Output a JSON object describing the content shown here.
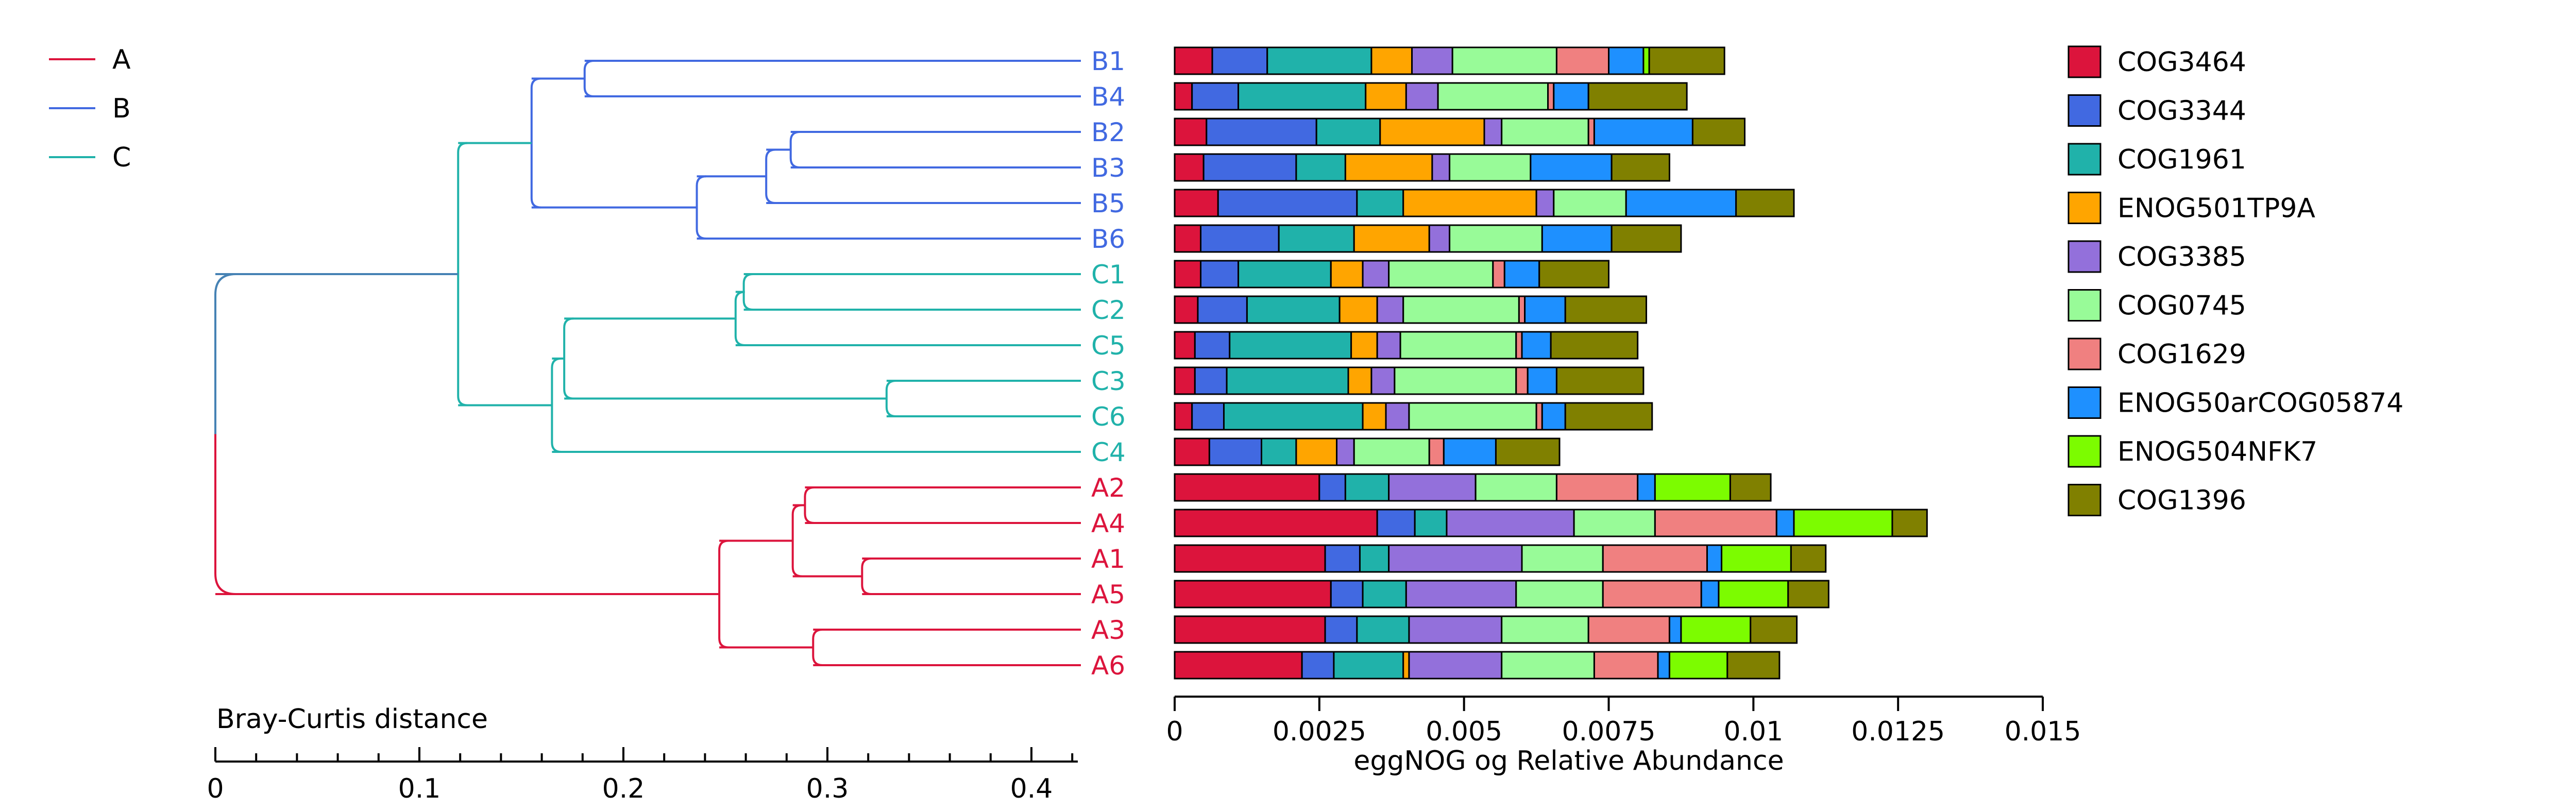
{
  "chart_data": [
    {
      "type": "dendrogram",
      "xlabel": "Bray-Curtis distance",
      "xlim": [
        0,
        0.42
      ],
      "xticks": [
        0,
        0.1,
        0.2,
        0.3,
        0.4
      ],
      "xtick_labels": [
        "0",
        "0.1",
        "0.2",
        "0.3",
        "0.4"
      ],
      "group_legend": [
        {
          "name": "A",
          "color": "#dc143c"
        },
        {
          "name": "B",
          "color": "#4169e1"
        },
        {
          "name": "C",
          "color": "#20b2aa"
        }
      ],
      "leaves": [
        {
          "label": "B1",
          "group": "B"
        },
        {
          "label": "B4",
          "group": "B"
        },
        {
          "label": "B2",
          "group": "B"
        },
        {
          "label": "B3",
          "group": "B"
        },
        {
          "label": "B5",
          "group": "B"
        },
        {
          "label": "B6",
          "group": "B"
        },
        {
          "label": "C1",
          "group": "C"
        },
        {
          "label": "C2",
          "group": "C"
        },
        {
          "label": "C5",
          "group": "C"
        },
        {
          "label": "C3",
          "group": "C"
        },
        {
          "label": "C6",
          "group": "C"
        },
        {
          "label": "C4",
          "group": "C"
        },
        {
          "label": "A2",
          "group": "A"
        },
        {
          "label": "A4",
          "group": "A"
        },
        {
          "label": "A1",
          "group": "A"
        },
        {
          "label": "A5",
          "group": "A"
        },
        {
          "label": "A3",
          "group": "A"
        },
        {
          "label": "A6",
          "group": "A"
        }
      ],
      "merges": [
        {
          "children": [
            "B1",
            "B4"
          ],
          "height": 0.181,
          "color": "#4169e1"
        },
        {
          "children": [
            "B2",
            "B3"
          ],
          "height": 0.282,
          "color": "#4169e1"
        },
        {
          "children": [
            [
              "B2",
              "B3"
            ],
            "B5"
          ],
          "height": 0.27,
          "color": "#4169e1"
        },
        {
          "children": [
            [
              "B2",
              "B3",
              "B5"
            ],
            "B6"
          ],
          "height": 0.236,
          "color": "#4169e1"
        },
        {
          "children": [
            [
              "B1",
              "B4"
            ],
            [
              "B2",
              "B3",
              "B5",
              "B6"
            ]
          ],
          "height": 0.155,
          "color": "#4169e1"
        },
        {
          "children": [
            "C1",
            "C2"
          ],
          "height": 0.259,
          "color": "#20b2aa"
        },
        {
          "children": [
            [
              "C1",
              "C2"
            ],
            "C5"
          ],
          "height": 0.255,
          "color": "#20b2aa"
        },
        {
          "children": [
            "C3",
            "C6"
          ],
          "height": 0.329,
          "color": "#20b2aa"
        },
        {
          "children": [
            [
              "C1",
              "C2",
              "C5"
            ],
            [
              "C3",
              "C6"
            ]
          ],
          "height": 0.171,
          "color": "#20b2aa"
        },
        {
          "children": [
            [
              "C1",
              "C2",
              "C5",
              "C3",
              "C6"
            ],
            "C4"
          ],
          "height": 0.165,
          "color": "#20b2aa"
        },
        {
          "children": [
            [
              "B1",
              "B4",
              "B2",
              "B3",
              "B5",
              "B6"
            ],
            [
              "C1",
              "C2",
              "C5",
              "C3",
              "C6",
              "C4"
            ]
          ],
          "height": 0.119,
          "color": "#20b2aa"
        },
        {
          "children": [
            "A2",
            "A4"
          ],
          "height": 0.289,
          "color": "#dc143c"
        },
        {
          "children": [
            "A1",
            "A5"
          ],
          "height": 0.317,
          "color": "#dc143c"
        },
        {
          "children": [
            [
              "A2",
              "A4"
            ],
            [
              "A1",
              "A5"
            ]
          ],
          "height": 0.283,
          "color": "#dc143c"
        },
        {
          "children": [
            "A3",
            "A6"
          ],
          "height": 0.293,
          "color": "#dc143c"
        },
        {
          "children": [
            [
              "A2",
              "A4",
              "A1",
              "A5"
            ],
            [
              "A3",
              "A6"
            ]
          ],
          "height": 0.247,
          "color": "#dc143c"
        },
        {
          "children": [
            [
              "B1",
              "B4",
              "B2",
              "B3",
              "B5",
              "B6",
              "C1",
              "C2",
              "C5",
              "C3",
              "C6",
              "C4"
            ],
            [
              "A2",
              "A4",
              "A1",
              "A5",
              "A3",
              "A6"
            ]
          ],
          "height": 0.0,
          "color": "#4682b4"
        }
      ]
    },
    {
      "type": "stacked-bar-horizontal",
      "xlabel": "eggNOG og Relative Abundance",
      "xlim": [
        0,
        0.015
      ],
      "xticks": [
        0,
        0.0025,
        0.005,
        0.0075,
        0.01,
        0.0125,
        0.015
      ],
      "xtick_labels": [
        "0",
        "0.0025",
        "0.005",
        "0.0075",
        "0.01",
        "0.0125",
        "0.015"
      ],
      "legend_position": "right",
      "categories": [
        "B1",
        "B4",
        "B2",
        "B3",
        "B5",
        "B6",
        "C1",
        "C2",
        "C5",
        "C3",
        "C6",
        "C4",
        "A2",
        "A4",
        "A1",
        "A5",
        "A3",
        "A6"
      ],
      "series": [
        {
          "name": "COG3464",
          "color": "#dc143c",
          "values": [
            0.00065,
            0.0003,
            0.00055,
            0.0005,
            0.00075,
            0.00045,
            0.00045,
            0.0004,
            0.00035,
            0.00035,
            0.0003,
            0.0006,
            0.0025,
            0.0035,
            0.0026,
            0.0027,
            0.0026,
            0.0022
          ]
        },
        {
          "name": "COG3344",
          "color": "#4169e1",
          "values": [
            0.00095,
            0.0008,
            0.0019,
            0.0016,
            0.0024,
            0.00135,
            0.00065,
            0.00085,
            0.0006,
            0.00055,
            0.00055,
            0.0009,
            0.00045,
            0.00065,
            0.0006,
            0.00055,
            0.00055,
            0.00055
          ]
        },
        {
          "name": "COG1961",
          "color": "#20b2aa",
          "values": [
            0.0018,
            0.0022,
            0.0011,
            0.00085,
            0.0008,
            0.0013,
            0.0016,
            0.0016,
            0.0021,
            0.0021,
            0.0024,
            0.0006,
            0.00075,
            0.00055,
            0.0005,
            0.00075,
            0.0009,
            0.0012
          ]
        },
        {
          "name": "ENOG501TP9A",
          "color": "#ffa500",
          "values": [
            0.0007,
            0.0007,
            0.0018,
            0.0015,
            0.0023,
            0.0013,
            0.00055,
            0.00065,
            0.00045,
            0.0004,
            0.0004,
            0.0007,
            0.0,
            0.0,
            0.0,
            0.0,
            0.0,
            0.0001
          ]
        },
        {
          "name": "COG3385",
          "color": "#9370db",
          "values": [
            0.0007,
            0.00055,
            0.0003,
            0.0003,
            0.0003,
            0.00035,
            0.00045,
            0.00045,
            0.0004,
            0.0004,
            0.0004,
            0.0003,
            0.0015,
            0.0022,
            0.0023,
            0.0019,
            0.0016,
            0.0016
          ]
        },
        {
          "name": "COG0745",
          "color": "#98fb98",
          "values": [
            0.0018,
            0.0019,
            0.0015,
            0.0014,
            0.00125,
            0.0016,
            0.0018,
            0.002,
            0.002,
            0.0021,
            0.0022,
            0.0013,
            0.0014,
            0.0014,
            0.0014,
            0.0015,
            0.0015,
            0.0016
          ]
        },
        {
          "name": "COG1629",
          "color": "#f08080",
          "values": [
            0.0009,
            0.0001,
            0.0001,
            0.0,
            0.0,
            0.0,
            0.0002,
            0.0001,
            0.0001,
            0.0002,
            0.0001,
            0.00025,
            0.0014,
            0.0021,
            0.0018,
            0.0017,
            0.0014,
            0.0011
          ]
        },
        {
          "name": "ENOG50arCOG05874",
          "color": "#1e90ff",
          "values": [
            0.0006,
            0.0006,
            0.0017,
            0.0014,
            0.0019,
            0.0012,
            0.0006,
            0.0007,
            0.0005,
            0.0005,
            0.0004,
            0.0009,
            0.0003,
            0.0003,
            0.00025,
            0.0003,
            0.0002,
            0.0002
          ]
        },
        {
          "name": "ENOG504NFK7",
          "color": "#7cfc00",
          "values": [
            0.0001,
            0.0,
            0.0,
            0.0,
            0.0,
            0.0,
            0.0,
            0.0,
            0.0,
            0.0,
            0.0,
            0.0,
            0.0013,
            0.0017,
            0.0012,
            0.0012,
            0.0012,
            0.001
          ]
        },
        {
          "name": "COG1396",
          "color": "#808000",
          "values": [
            0.0013,
            0.0017,
            0.0009,
            0.001,
            0.001,
            0.0012,
            0.0012,
            0.0014,
            0.0015,
            0.0015,
            0.0015,
            0.0011,
            0.0007,
            0.0006,
            0.0006,
            0.0007,
            0.0008,
            0.0009
          ]
        }
      ]
    }
  ]
}
